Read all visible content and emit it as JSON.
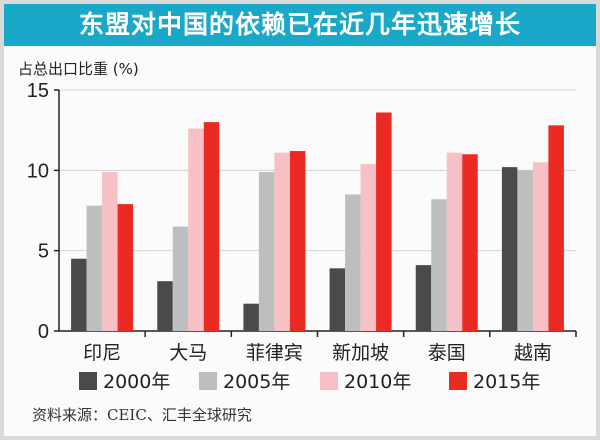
{
  "chart_data": {
    "type": "bar",
    "title": "东盟对中国的依赖已在近几年迅速增长",
    "ylabel": "占总出口比重 (%)",
    "xlabel": "",
    "ylim": [
      0,
      15
    ],
    "yticks": [
      0,
      5,
      10,
      15
    ],
    "grid": true,
    "legend_position": "bottom",
    "categories": [
      "印尼",
      "大马",
      "菲律宾",
      "新加坡",
      "泰国",
      "越南"
    ],
    "series": [
      {
        "name": "2000年",
        "color": "#4a4a4c",
        "values": [
          4.5,
          3.1,
          1.7,
          3.9,
          4.1,
          10.2
        ]
      },
      {
        "name": "2005年",
        "color": "#bdbec0",
        "values": [
          7.8,
          6.5,
          9.9,
          8.5,
          8.2,
          10.0
        ]
      },
      {
        "name": "2010年",
        "color": "#f6c0c4",
        "values": [
          9.9,
          12.6,
          11.1,
          10.4,
          11.1,
          10.5
        ]
      },
      {
        "name": "2015年",
        "color": "#ea2a23",
        "values": [
          7.9,
          13.0,
          11.2,
          13.6,
          11.0,
          12.8
        ]
      }
    ],
    "source": "资料来源：CEIC、汇丰全球研究"
  }
}
